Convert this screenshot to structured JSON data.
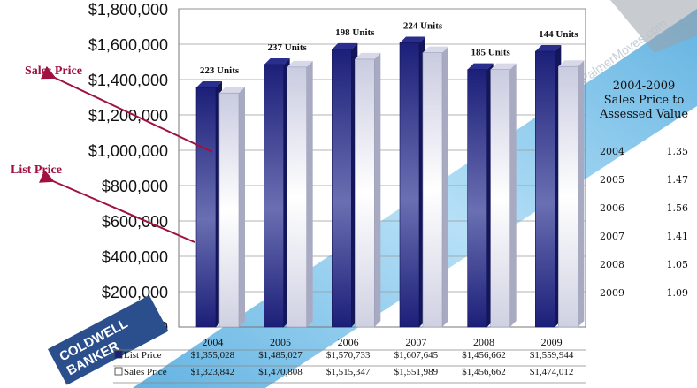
{
  "chart_data": {
    "type": "bar",
    "categories": [
      "2004",
      "2005",
      "2006",
      "2007",
      "2008",
      "2009"
    ],
    "series": [
      {
        "name": "List Price",
        "values": [
          1355028,
          1485027,
          1570733,
          1607645,
          1456662,
          1559944
        ],
        "color": "#1c1f78"
      },
      {
        "name": "Sales Price",
        "values": [
          1323842,
          1470808,
          1515347,
          1551989,
          1456662,
          1474012
        ],
        "color": "#e6e7f0"
      }
    ],
    "value_labels": [
      "$1,355,028",
      "$1,485,027",
      "$1,570,733",
      "$1,607,645",
      "$1,456,662",
      "$1,559,944"
    ],
    "value_labels_sales": [
      "$1,323,842",
      "$1,470,808",
      "$1,515,347",
      "$1,551,989",
      "$1,456,662",
      "$1,474,012"
    ],
    "unit_labels": [
      "223 Units",
      "237 Units",
      "198 Units",
      "224 Units",
      "185 Units",
      "144 Units"
    ],
    "ylim": [
      0,
      1800000
    ],
    "yticks": [
      0,
      200000,
      400000,
      600000,
      800000,
      1000000,
      1200000,
      1400000,
      1600000,
      1800000
    ],
    "ytick_labels": [
      "$0",
      "$200,000",
      "$400,000",
      "$600,000",
      "$800,000",
      "$1,000,000",
      "$1,200,000",
      "$1,400,000",
      "$1,600,000",
      "$1,800,000"
    ],
    "grid": true,
    "table_row_labels": [
      "List Price",
      "Sales Price"
    ],
    "annotations": [
      "Sales Price",
      "List Price"
    ],
    "ratio_table": {
      "title": [
        "2004-2009",
        "Sales Price to",
        "Assessed Value"
      ],
      "rows": [
        {
          "year": "2004",
          "value": "1.35"
        },
        {
          "year": "2005",
          "value": "1.47"
        },
        {
          "year": "2006",
          "value": "1.56"
        },
        {
          "year": "2007",
          "value": "1.41"
        },
        {
          "year": "2008",
          "value": "1.05"
        },
        {
          "year": "2009",
          "value": "1.09"
        }
      ]
    }
  },
  "colors": {
    "annotation": "#a01040",
    "watermark": "#3fa7e0",
    "logo_bg": "#2a4f8c"
  },
  "watermark": {
    "logo_line1": "COLDWELL",
    "logo_line2": "BANKER",
    "site": "PalmerMoves.com"
  }
}
